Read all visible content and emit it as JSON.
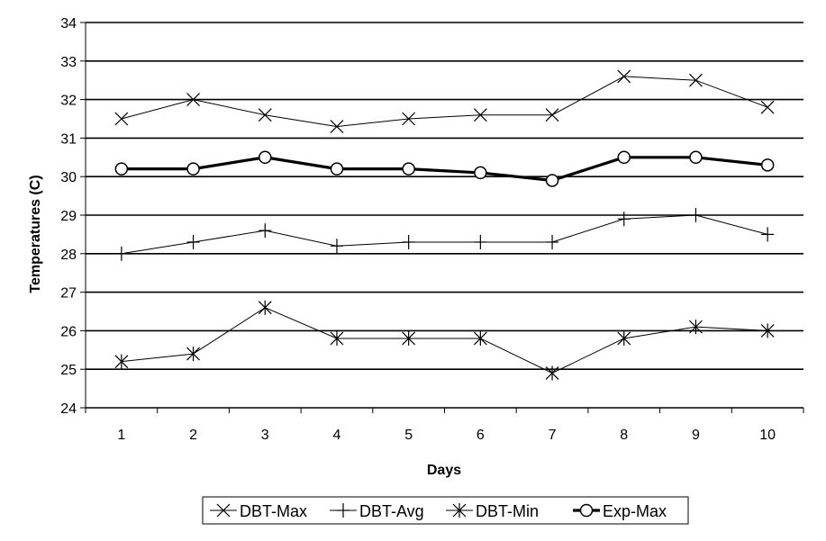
{
  "chart_data": {
    "type": "line",
    "xlabel": "Days",
    "ylabel": "Temperatures (C)",
    "ylim": [
      24,
      34
    ],
    "ytick_step": 1,
    "grid": "horizontal",
    "legend_position": "bottom",
    "categories": [
      "1",
      "2",
      "3",
      "4",
      "5",
      "6",
      "7",
      "8",
      "9",
      "10"
    ],
    "series": [
      {
        "name": "DBT-Max",
        "marker": "x",
        "color": "#000000",
        "values": [
          31.5,
          32.0,
          31.6,
          31.3,
          31.5,
          31.6,
          31.6,
          32.6,
          32.5,
          31.8
        ]
      },
      {
        "name": "DBT-Avg",
        "marker": "plus",
        "color": "#000000",
        "values": [
          28.0,
          28.3,
          28.6,
          28.2,
          28.3,
          28.3,
          28.3,
          28.9,
          29.0,
          28.5
        ]
      },
      {
        "name": "DBT-Min",
        "marker": "star",
        "color": "#000000",
        "values": [
          25.2,
          25.4,
          26.6,
          25.8,
          25.8,
          25.8,
          24.9,
          25.8,
          26.1,
          26.0
        ]
      },
      {
        "name": "Exp-Max",
        "marker": "circle",
        "color": "#000000",
        "values": [
          30.2,
          30.2,
          30.5,
          30.2,
          30.2,
          30.1,
          29.9,
          30.5,
          30.5,
          30.3
        ]
      }
    ]
  }
}
